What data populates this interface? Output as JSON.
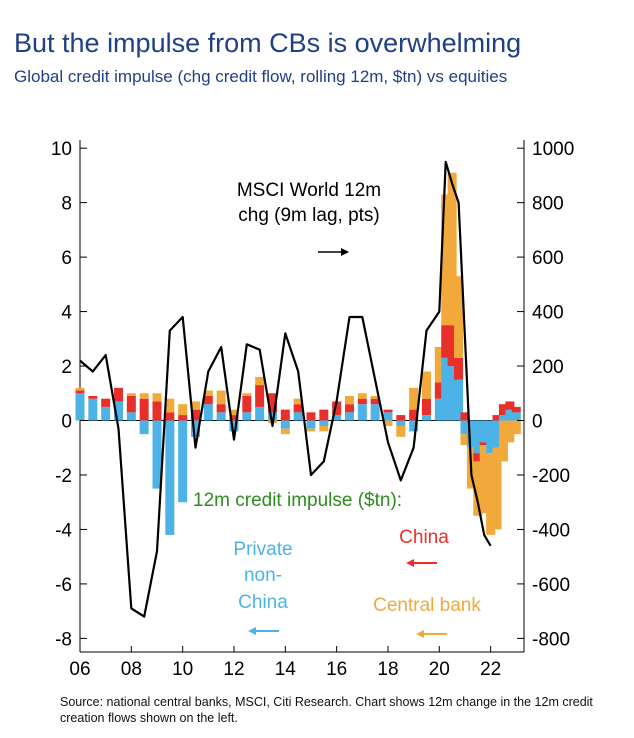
{
  "title": "But the impulse from CBs is overwhelming",
  "subtitle": "Global credit impulse (chg credit flow, rolling 12m, $tn) vs equities",
  "source": "Source: national central banks, MSCI, Citi Research. Chart shows 12m change in the 12m credit creation flows shown on the left.",
  "colors": {
    "private": "#4db3e6",
    "china": "#e8302a",
    "central_bank": "#f2a93b",
    "msci": "#000000",
    "green_text": "#2e8b1e",
    "title": "#1f3f86"
  },
  "annotations": {
    "msci_line1": "MSCI World 12m",
    "msci_line2": "chg (9m lag, pts)",
    "impulse_label": "12m credit impulse ($tn):",
    "china": "China",
    "private_l1": "Private",
    "private_l2": "non-",
    "private_l3": "China",
    "central_bank": "Central bank"
  },
  "chart_data": {
    "type": "bar",
    "stacked": true,
    "title": "Global credit impulse (chg credit flow, rolling 12m, $tn) vs equities",
    "xlabel": "",
    "ylabel": "",
    "x_tick_labels": [
      "06",
      "08",
      "10",
      "12",
      "14",
      "16",
      "18",
      "20",
      "22"
    ],
    "xlim": [
      2006,
      2023.3
    ],
    "ylim_left": [
      -8.5,
      10.3
    ],
    "ylim_right": [
      -850,
      1030
    ],
    "left_ticks": [
      "10",
      "8",
      "6",
      "4",
      "2",
      "0",
      "-2",
      "-4",
      "-6",
      "-8"
    ],
    "right_ticks": [
      "1000",
      "800",
      "600",
      "400",
      "200",
      "0",
      "-200",
      "-400",
      "-600",
      "-800"
    ],
    "grid": false,
    "x": [
      2006.0,
      2006.5,
      2007.0,
      2007.5,
      2008.0,
      2008.5,
      2009.0,
      2009.5,
      2010.0,
      2010.5,
      2011.0,
      2011.5,
      2012.0,
      2012.5,
      2013.0,
      2013.5,
      2014.0,
      2014.5,
      2015.0,
      2015.5,
      2016.0,
      2016.5,
      2017.0,
      2017.5,
      2018.0,
      2018.5,
      2019.0,
      2019.5,
      2020.0,
      2020.25,
      2020.5,
      2020.75,
      2021.0,
      2021.25,
      2021.5,
      2021.75,
      2022.0,
      2022.25,
      2022.5,
      2022.75,
      2023.0
    ],
    "series": [
      {
        "name": "Private non-China",
        "axis": "left",
        "values": [
          1.0,
          0.8,
          0.5,
          0.7,
          0.3,
          -0.5,
          -2.5,
          -4.2,
          -3.0,
          -0.6,
          0.6,
          0.3,
          -0.4,
          0.3,
          0.5,
          0.3,
          -0.3,
          0.3,
          -0.3,
          -0.2,
          0.2,
          0.3,
          0.6,
          0.6,
          0.3,
          -0.2,
          -0.4,
          0.2,
          0.8,
          2.3,
          2.0,
          1.5,
          -0.5,
          -1.0,
          -1.2,
          -0.8,
          -1.2,
          -1.0,
          0.2,
          0.4,
          0.3
        ]
      },
      {
        "name": "China",
        "axis": "left",
        "values": [
          0.1,
          0.1,
          0.3,
          0.5,
          0.6,
          0.8,
          0.7,
          0.3,
          0.2,
          0.4,
          0.3,
          0.3,
          0.2,
          0.6,
          0.8,
          0.7,
          0.4,
          0.3,
          0.3,
          0.4,
          0.5,
          0.3,
          0.2,
          0.2,
          0.1,
          0.2,
          0.4,
          0.6,
          0.6,
          1.2,
          1.5,
          0.8,
          0.3,
          0.0,
          -0.3,
          -0.1,
          0.0,
          0.2,
          0.4,
          0.3,
          0.2
        ]
      },
      {
        "name": "Central bank",
        "axis": "left",
        "values": [
          0.1,
          0.0,
          0.0,
          0.0,
          0.1,
          0.2,
          0.3,
          0.5,
          0.4,
          0.3,
          0.2,
          0.5,
          0.2,
          0.1,
          0.3,
          -0.1,
          -0.2,
          0.2,
          -0.1,
          -0.2,
          0.0,
          0.3,
          0.2,
          0.1,
          -0.2,
          -0.4,
          0.8,
          1.0,
          1.3,
          4.8,
          5.6,
          3.0,
          -0.4,
          -1.5,
          -2.0,
          -2.5,
          -3.0,
          -3.0,
          -1.5,
          -0.8,
          -0.5
        ]
      },
      {
        "name": "MSCI World 12m chg (9m lag, pts)",
        "type": "line",
        "axis": "right",
        "values": [
          220,
          180,
          240,
          -30,
          -690,
          -720,
          -480,
          330,
          380,
          -100,
          180,
          270,
          -70,
          280,
          260,
          -20,
          320,
          180,
          -200,
          -150,
          70,
          380,
          380,
          150,
          -80,
          -220,
          -100,
          330,
          400,
          950,
          870,
          800,
          300,
          -200,
          -300,
          -420,
          -460,
          null,
          null,
          null,
          null
        ]
      }
    ]
  }
}
